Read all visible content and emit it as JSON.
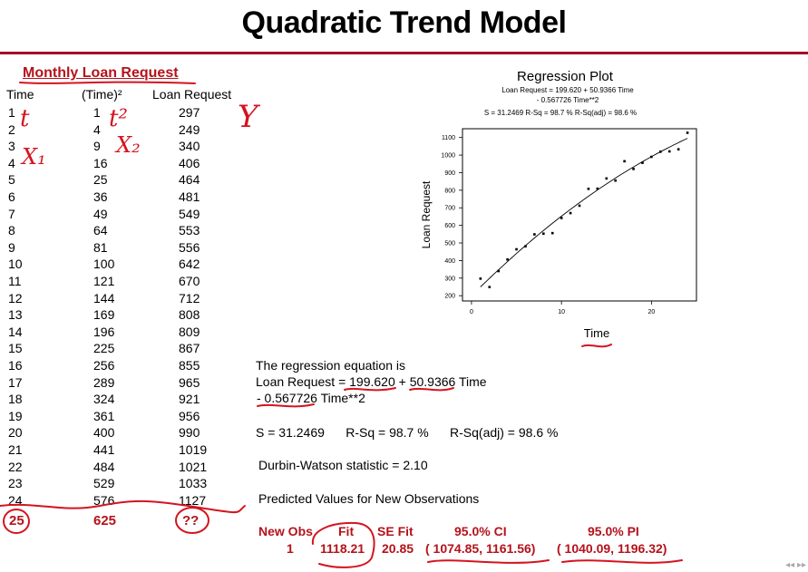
{
  "title": "Quadratic Trend Model",
  "table": {
    "heading": "Monthly Loan Request",
    "col_time": "Time",
    "col_time_sq": "(Time)²",
    "col_loan": "Loan Request",
    "rows": [
      [
        "1",
        "1",
        "297"
      ],
      [
        "2",
        "4",
        "249"
      ],
      [
        "3",
        "9",
        "340"
      ],
      [
        "4",
        "16",
        "406"
      ],
      [
        "5",
        "25",
        "464"
      ],
      [
        "6",
        "36",
        "481"
      ],
      [
        "7",
        "49",
        "549"
      ],
      [
        "8",
        "64",
        "553"
      ],
      [
        "9",
        "81",
        "556"
      ],
      [
        "10",
        "100",
        "642"
      ],
      [
        "11",
        "121",
        "670"
      ],
      [
        "12",
        "144",
        "712"
      ],
      [
        "13",
        "169",
        "808"
      ],
      [
        "14",
        "196",
        "809"
      ],
      [
        "15",
        "225",
        "867"
      ],
      [
        "16",
        "256",
        "855"
      ],
      [
        "17",
        "289",
        "965"
      ],
      [
        "18",
        "324",
        "921"
      ],
      [
        "19",
        "361",
        "956"
      ],
      [
        "20",
        "400",
        "990"
      ],
      [
        "21",
        "441",
        "1019"
      ],
      [
        "22",
        "484",
        "1021"
      ],
      [
        "23",
        "529",
        "1033"
      ],
      [
        "24",
        "576",
        "1127"
      ]
    ],
    "predict_row": [
      "25",
      "625",
      "??"
    ]
  },
  "annotations": {
    "t": "t",
    "t2": "t²",
    "x1": "X₁",
    "x2": "X₂",
    "y": "Y"
  },
  "output": {
    "eq_intro": "The regression equation is",
    "eq_line1": "Loan Request = 199.620 + 50.9366 Time",
    "eq_line2": "- 0.567726 Time**2",
    "stats": "S = 31.2469      R-Sq = 98.7 %      R-Sq(adj) = 98.6 %",
    "durbin": "Durbin-Watson statistic = 2.10",
    "predicted_title": "Predicted Values for New Observations",
    "pred_headers": [
      "New Obs",
      "Fit",
      "SE Fit",
      "95.0% CI",
      "95.0% PI"
    ],
    "pred_values": [
      "1",
      "1118.21",
      "20.85",
      "( 1074.85, 1161.56)",
      "( 1040.09, 1196.32)"
    ]
  },
  "chart_data": {
    "type": "scatter",
    "title": "Regression Plot",
    "subtitle_lines": [
      "Loan Request = 199.620 + 50.9366 Time",
      "- 0.567726 Time**2",
      "S = 31.2469      R-Sq = 98.7 %      R-Sq(adj) = 98.6 %"
    ],
    "xlabel": "Time",
    "ylabel": "Loan Request",
    "xlim": [
      -1,
      25
    ],
    "ylim": [
      170,
      1150
    ],
    "x_ticks": [
      0,
      10,
      20
    ],
    "y_ticks": [
      200,
      300,
      400,
      500,
      600,
      700,
      800,
      900,
      1000,
      1100
    ],
    "x": [
      1,
      2,
      3,
      4,
      5,
      6,
      7,
      8,
      9,
      10,
      11,
      12,
      13,
      14,
      15,
      16,
      17,
      18,
      19,
      20,
      21,
      22,
      23,
      24
    ],
    "y": [
      297,
      249,
      340,
      406,
      464,
      481,
      549,
      553,
      556,
      642,
      670,
      712,
      808,
      809,
      867,
      855,
      965,
      921,
      956,
      990,
      1019,
      1021,
      1033,
      1127
    ],
    "fit": {
      "a": 199.62,
      "b": 50.9366,
      "c": -0.567726
    }
  }
}
